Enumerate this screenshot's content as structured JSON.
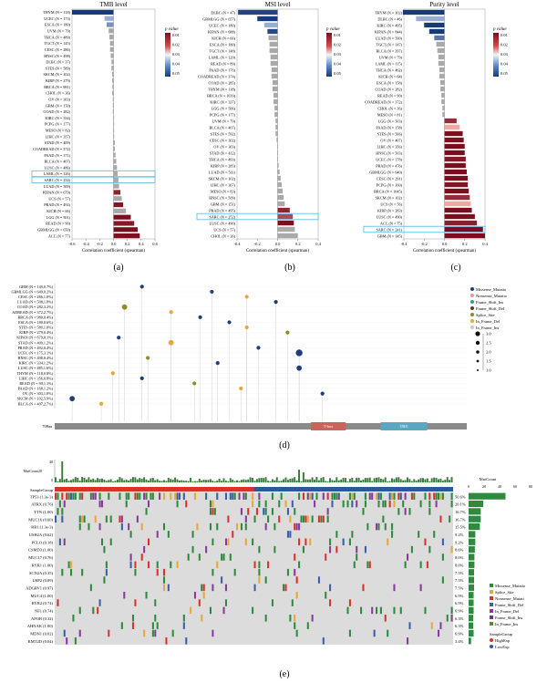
{
  "colors": {
    "pos_dark": "#7a0d1e",
    "pos_light": "#f2a8a0",
    "neg_dark": "#163a7a",
    "neg_light": "#b9cbe6",
    "highlight": "#54b6e0",
    "stem": "#c8c8c8",
    "axis": "#555555",
    "bar_track": "#8a8a8a",
    "domain_1": "#c9645a",
    "domain_2": "#5aa7c2",
    "grid_bg": "#dcdcdc",
    "sg_high": "#d9322b",
    "sg_low": "#2b5a9a"
  },
  "panel_labels": [
    "(a)",
    "(b)",
    "(c)",
    "(d)",
    "(e)"
  ],
  "scale_title": "p value",
  "chart_data": [
    {
      "type": "bar",
      "title": "TMB level",
      "xlabel": "Correlation coefficient (spearman)",
      "xlim": [
        -0.6,
        0.6
      ],
      "xticks": [
        "-0.6",
        "-0.4",
        "-0.2",
        "0.0",
        "0.2",
        "0.4",
        "0.6"
      ],
      "legend_ticks": [
        "0.01",
        "0.02",
        "0.03",
        "0.04",
        "0.05"
      ],
      "highlight": [
        "LAML (N = 126)",
        "SARC (N = 234)"
      ],
      "categories": [
        "THYM (N = 118)",
        "UCEC (N = 173)",
        "ESCA (N = 180)",
        "UVM (N = 79)",
        "THCA (N = 489)",
        "TGCT (N = 145)",
        "CESC (N = 286)",
        "HNSC (N = 498)",
        "DLBC (N = 37)",
        "STES (N = 589)",
        "SKCM (N = 102)",
        "KIRP (N = 279)",
        "BRCA (N = 981)",
        "CHOL (N = 36)",
        "OV (N = 303)",
        "GBM (N = 150)",
        "COAD (N = 282)",
        "KIRC (N = 334)",
        "PCPG (N = 177)",
        "MESO (N = 82)",
        "LIHC (N = 357)",
        "STAD (N = 409)",
        "COADREAD (N = 372)",
        "PAAD (N = 171)",
        "BLCA (N = 407)",
        "LUSC (N = 486)",
        "LAML (N = 126)",
        "SARC (N = 234)",
        "LUAD (N = 509)",
        "KIPAN (N = 679)",
        "UCS (N = 57)",
        "PRAD (N = 492)",
        "KICH (N = 66)",
        "LGG (N = 501)",
        "READ (N = 90)",
        "GBMLGG (N = 650)",
        "ACC (N = 77)"
      ],
      "values": [
        -0.6,
        -0.13,
        -0.1,
        -0.07,
        -0.06,
        -0.05,
        -0.05,
        -0.04,
        -0.03,
        -0.03,
        -0.02,
        -0.02,
        -0.02,
        -0.02,
        -0.01,
        -0.01,
        -0.01,
        0.0,
        0.0,
        0.0,
        0.01,
        0.02,
        0.02,
        0.03,
        0.04,
        0.05,
        0.06,
        0.07,
        0.08,
        0.1,
        0.12,
        0.14,
        0.18,
        0.25,
        0.3,
        0.35,
        0.38
      ],
      "pvalues": [
        0.0001,
        0.04,
        0.03,
        0.5,
        0.2,
        0.5,
        0.4,
        0.35,
        0.8,
        0.3,
        0.8,
        0.06,
        0.045,
        0.9,
        0.8,
        0.9,
        0.85,
        0.95,
        0.95,
        0.95,
        0.9,
        0.5,
        0.6,
        0.6,
        0.3,
        0.25,
        0.35,
        0.3,
        0.06,
        0.007,
        0.3,
        0.003,
        0.15,
        0.0001,
        0.004,
        0.0001,
        0.0008
      ]
    },
    {
      "type": "bar",
      "title": "MSI level",
      "xlabel": "Correlation coefficient (spearman)",
      "xlim": [
        -0.4,
        0.4
      ],
      "xticks": [
        "-0.4",
        "-0.2",
        "0.0",
        "0.2",
        "0.4"
      ],
      "legend_ticks": [
        "0.01",
        "0.02",
        "0.03",
        "0.04",
        "0.05"
      ],
      "highlight": [
        "SARC (N = 252)"
      ],
      "categories": [
        "DLBC (N = 47)",
        "GBMLGG (N = 657)",
        "UCEC (N = 180)",
        "KIPAN (N = 688)",
        "KICH (N = 66)",
        "ESCA (N = 180)",
        "TGCT (N = 148)",
        "LAML (N = 129)",
        "READ (N = 89)",
        "PAAD (N = 176)",
        "COADREAD (N = 374)",
        "COAD (N = 285)",
        "THYM (N = 118)",
        "BRCA (N = 1039)",
        "KIRC (N = 337)",
        "LGG (N = 506)",
        "PCPG (N = 177)",
        "UVM (N = 79)",
        "BLCA (N = 407)",
        "STES (N = 592)",
        "CESC (N = 302)",
        "OV (N = 303)",
        "STAD (N = 412)",
        "THCA (N = 493)",
        "KIRP (N = 285)",
        "LUAD (N = 511)",
        "SKCM (N = 102)",
        "LIHC (N = 367)",
        "MESO (N = 83)",
        "HNSC (N = 509)",
        "GBM (N = 151)",
        "PRAD (N = 495)",
        "SARC (N = 252)",
        "LUSC (N = 490)",
        "UCS (N = 57)",
        "CHOL (N = 36)"
      ],
      "values": [
        -0.39,
        -0.2,
        -0.13,
        -0.1,
        -0.09,
        -0.08,
        -0.08,
        -0.07,
        -0.07,
        -0.06,
        -0.06,
        -0.05,
        -0.05,
        -0.04,
        -0.04,
        -0.03,
        -0.03,
        -0.02,
        -0.02,
        -0.02,
        -0.01,
        0.0,
        0.0,
        0.0,
        0.01,
        0.02,
        0.03,
        0.04,
        0.05,
        0.06,
        0.07,
        0.12,
        0.15,
        0.16,
        0.17,
        0.2
      ],
      "pvalues": [
        0.004,
        0.0001,
        0.04,
        0.005,
        0.4,
        0.3,
        0.3,
        0.4,
        0.5,
        0.4,
        0.25,
        0.4,
        0.6,
        0.2,
        0.4,
        0.5,
        0.7,
        0.9,
        0.7,
        0.6,
        0.9,
        0.95,
        0.95,
        0.95,
        0.9,
        0.7,
        0.75,
        0.45,
        0.7,
        0.2,
        0.4,
        0.008,
        0.02,
        0.0005,
        0.2,
        0.25
      ]
    },
    {
      "type": "bar",
      "title": "Purity level",
      "xlabel": "Correlation coefficient (spearman)",
      "xlim": [
        -0.4,
        0.4
      ],
      "xticks": [
        "-0.4",
        "-0.2",
        "0.0",
        "0.2",
        "0.4"
      ],
      "legend_ticks": [
        "0.01",
        "0.02",
        "0.03",
        "0.04",
        "0.05"
      ],
      "highlight": [
        "SARC (N = 241)"
      ],
      "categories": [
        "THYM (N = 102)",
        "DLBC (N = 46)",
        "KIRC (N = 495)",
        "KIPAN (N = 844)",
        "LUAD (N = 500)",
        "TGCT (N = 147)",
        "BLCA (N = 397)",
        "UVM (N = 79)",
        "LAML (N = 115)",
        "THCA (N = 462)",
        "KICH (N = 64)",
        "ESCA (N = 158)",
        "COAD (N = 282)",
        "READ (N = 90)",
        "COADREAD (N = 372)",
        "CHOL (N = 36)",
        "MESO (N = 81)",
        "LGG (N = 503)",
        "PAAD (N = 158)",
        "STES (N = 566)",
        "OV (N = 407)",
        "LIHC (N = 356)",
        "HNSC (N = 503)",
        "UCEC (N = 178)",
        "PRAD (N = 476)",
        "GBMLGG (N = 640)",
        "CESC (N = 291)",
        "PCPG (N = 160)",
        "BRCA (N = 1045)",
        "SKCM (N = 102)",
        "UCS (N = 56)",
        "KIRP (N = 283)",
        "LUSC (N = 490)",
        "ACC (N = 75)",
        "SARC (N = 241)",
        "GBM (N = 145)"
      ],
      "values": [
        -0.41,
        -0.28,
        -0.2,
        -0.15,
        -0.1,
        -0.08,
        -0.07,
        -0.06,
        -0.06,
        -0.05,
        -0.05,
        -0.04,
        -0.04,
        -0.03,
        -0.03,
        -0.02,
        -0.02,
        0.12,
        0.15,
        0.18,
        0.19,
        0.2,
        0.2,
        0.21,
        0.21,
        0.22,
        0.23,
        0.23,
        0.24,
        0.25,
        0.26,
        0.27,
        0.3,
        0.32,
        0.38,
        0.4
      ],
      "pvalues": [
        0.0001,
        0.04,
        0.0001,
        0.0001,
        0.02,
        0.2,
        0.15,
        0.5,
        0.5,
        0.3,
        0.6,
        0.6,
        0.5,
        0.7,
        0.6,
        0.9,
        0.9,
        0.01,
        0.05,
        0.0001,
        0.001,
        0.0001,
        0.0001,
        0.004,
        0.0001,
        0.0001,
        0.0001,
        0.003,
        0.0001,
        0.01,
        0.05,
        0.0001,
        0.0001,
        0.006,
        0.0001,
        0.0001
      ]
    },
    {
      "type": "scatter",
      "title": "",
      "protein_length": "708aa",
      "domains": [
        "T-box",
        "TBX"
      ],
      "legend": [
        "Missense_Mutatio",
        "Nonsense_Mutatio",
        "Frame_Shift_Ins",
        "Frame_Shift_Del",
        "Splice_Site",
        "In_Frame_Del",
        "In_Frame_Ins"
      ],
      "size_ticks": [
        "3.0",
        "2.5",
        "2.0",
        "1.5",
        "1.0"
      ],
      "categories": [
        "GBM (N = 149,0.7%)",
        "GBMLGG (N = 649,0.2%)",
        "CESC (N = 286,1.0%)",
        "LUAD (N = 508,1.8%)",
        "COAD (N = 282,3.2%)",
        "ADREAD (N = 372,2.7%)",
        "BRCA (N = 980,0.4%)",
        "ESCA (N = 180,0.6%)",
        "STES (N = 589,1.0%)",
        "KIRP (N = 279,0.4%)",
        "KIPAN (N = 679,0.1%)",
        "STAD (N = 409,1.2%)",
        "PRAD (N = 492,0.4%)",
        "UCEC (N = 175,3.1%)",
        "HNSC (N = 498,0.4%)",
        "KIRC (N = 334,1.2%)",
        "LUSC (N = 485,1.6%)",
        "THYM (N = 118,0.8%)",
        "LIHC (N = 356,0.8%)",
        "READ (N = 90,1.1%)",
        "PAAD (N = 168,1.2%)",
        "OV (N = 303,1.0%)",
        "SKCM (N = 102,5.9%)",
        "BLCA (N = 407,2.7%)"
      ],
      "x": [
        150,
        270,
        330,
        380,
        120,
        200,
        250,
        300,
        330,
        400,
        110,
        200,
        350,
        420,
        160,
        280,
        420,
        100,
        150,
        240,
        320,
        460,
        30,
        80
      ],
      "values": [
        1,
        1,
        1,
        1,
        2,
        1,
        1,
        1,
        1,
        1,
        1,
        2,
        1,
        3,
        1,
        1,
        2,
        1,
        1,
        1,
        1,
        1,
        2,
        1
      ]
    },
    {
      "type": "heatmap",
      "title": "",
      "top_label": "MutCount",
      "top_ticks": [
        "40",
        "20",
        "0"
      ],
      "right_label": "MutCount",
      "right_ticks": [
        "0",
        "20",
        "40",
        "60",
        "80"
      ],
      "group_row_label": "SampleGroup",
      "group_legend_title": "SampleGroup",
      "group_legend": [
        "HighExp",
        "LowExp"
      ],
      "legend": [
        "Missense_Mutatio",
        "Splice_Site",
        "Nonsense_Mutati",
        "Frame_Shift_Del",
        "In_Frame_Del",
        "Frame_Shift_Ins",
        "In_Frame_Ins"
      ],
      "genes": [
        "TP53 (1.3e-3)",
        "ATRX (0.76)",
        "TTN (1.00)",
        "MUC16 (0.60)",
        "RB1 (1.3e-3)",
        "USH2A (0.62)",
        "PCLO (0.18)",
        "CSMD3 (1.00)",
        "MUC17 (0.76)",
        "RYR1 (1.00)",
        "SCN2A (0.35)",
        "LRP2 (0.09)",
        "ADGRV1 (0.97)",
        "MUC4 (1.00)",
        "RYR2 (0.74)",
        "NF1 (0.74)",
        "APOB (0.32)",
        "AHNAK (1.00)",
        "MDN1 (0.02)",
        "KMT2D (0.04)"
      ],
      "percents": [
        "50.6%",
        "20.1%",
        "16.7%",
        "16.7%",
        "15.5%",
        "9.2%",
        "9.2%",
        "8.6%",
        "8.0%",
        "8.0%",
        "7.5%",
        "7.5%",
        "7.5%",
        "6.9%",
        "6.9%",
        "6.9%",
        "6.3%",
        "6.3%",
        "6.9%",
        "3.4%"
      ],
      "values": [
        50.6,
        20.1,
        16.7,
        16.7,
        15.5,
        9.2,
        9.2,
        8.6,
        8.0,
        8.0,
        7.5,
        7.5,
        7.5,
        6.9,
        6.9,
        6.9,
        6.3,
        6.3,
        6.9,
        3.4
      ],
      "high_exp_fraction": 0.5
    }
  ]
}
